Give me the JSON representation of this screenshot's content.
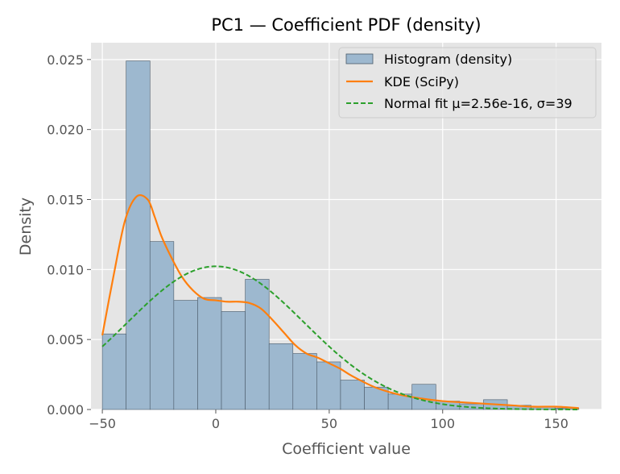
{
  "chart_data": {
    "type": "bar",
    "title": "PC1 — Coefficient PDF (density)",
    "xlabel": "Coefficient value",
    "ylabel": "Density",
    "xlim": [
      -55,
      170
    ],
    "ylim": [
      0,
      0.0262
    ],
    "xticks": [
      -50,
      0,
      50,
      100,
      150
    ],
    "xtick_labels": [
      "−50",
      "0",
      "50",
      "100",
      "150"
    ],
    "yticks": [
      0,
      0.005,
      0.01,
      0.015,
      0.02,
      0.025
    ],
    "ytick_labels": [
      "0.000",
      "0.005",
      "0.010",
      "0.015",
      "0.020",
      "0.025"
    ],
    "grid": true,
    "legend_position": "top-right",
    "histogram": {
      "name": "Histogram (density)",
      "color": "#9db8cf",
      "edge_color": "#4a5a68",
      "bin_edges": [
        -50,
        -39.5,
        -29,
        -18.5,
        -8,
        2.5,
        13,
        23.5,
        34,
        44.5,
        55,
        65.5,
        76,
        86.5,
        97,
        107.5,
        118,
        128.5,
        139,
        149.5,
        160
      ],
      "values": [
        0.0054,
        0.0249,
        0.012,
        0.0078,
        0.008,
        0.007,
        0.0093,
        0.0047,
        0.004,
        0.0034,
        0.0021,
        0.0016,
        0.0011,
        0.0018,
        0.0006,
        0.0004,
        0.0007,
        0.0003,
        0.0002,
        0.0001
      ]
    },
    "series": [
      {
        "name": "KDE (SciPy)",
        "type": "line",
        "color": "#ff7f0e",
        "dash": "solid",
        "x": [
          -50,
          -45,
          -40,
          -35,
          -30,
          -27,
          -24,
          -20,
          -15,
          -10,
          -5,
          0,
          5,
          10,
          15,
          20,
          25,
          30,
          35,
          40,
          45,
          50,
          55,
          60,
          70,
          80,
          90,
          100,
          110,
          120,
          130,
          140,
          150,
          160
        ],
        "y": [
          0.0053,
          0.0096,
          0.0135,
          0.0152,
          0.015,
          0.0138,
          0.0124,
          0.011,
          0.0095,
          0.0085,
          0.0079,
          0.0078,
          0.0077,
          0.0077,
          0.0076,
          0.0072,
          0.0064,
          0.0055,
          0.0046,
          0.004,
          0.0037,
          0.0033,
          0.0029,
          0.0024,
          0.0016,
          0.0011,
          0.0008,
          0.0006,
          0.0005,
          0.0004,
          0.0003,
          0.0002,
          0.0002,
          0.0001
        ]
      },
      {
        "name": "Normal fit μ=2.56e-16, σ=39",
        "type": "normal",
        "color": "#2ca02c",
        "dash": "dashed",
        "mu": 0,
        "sigma": 39,
        "x_range": [
          -50,
          160
        ]
      }
    ]
  }
}
